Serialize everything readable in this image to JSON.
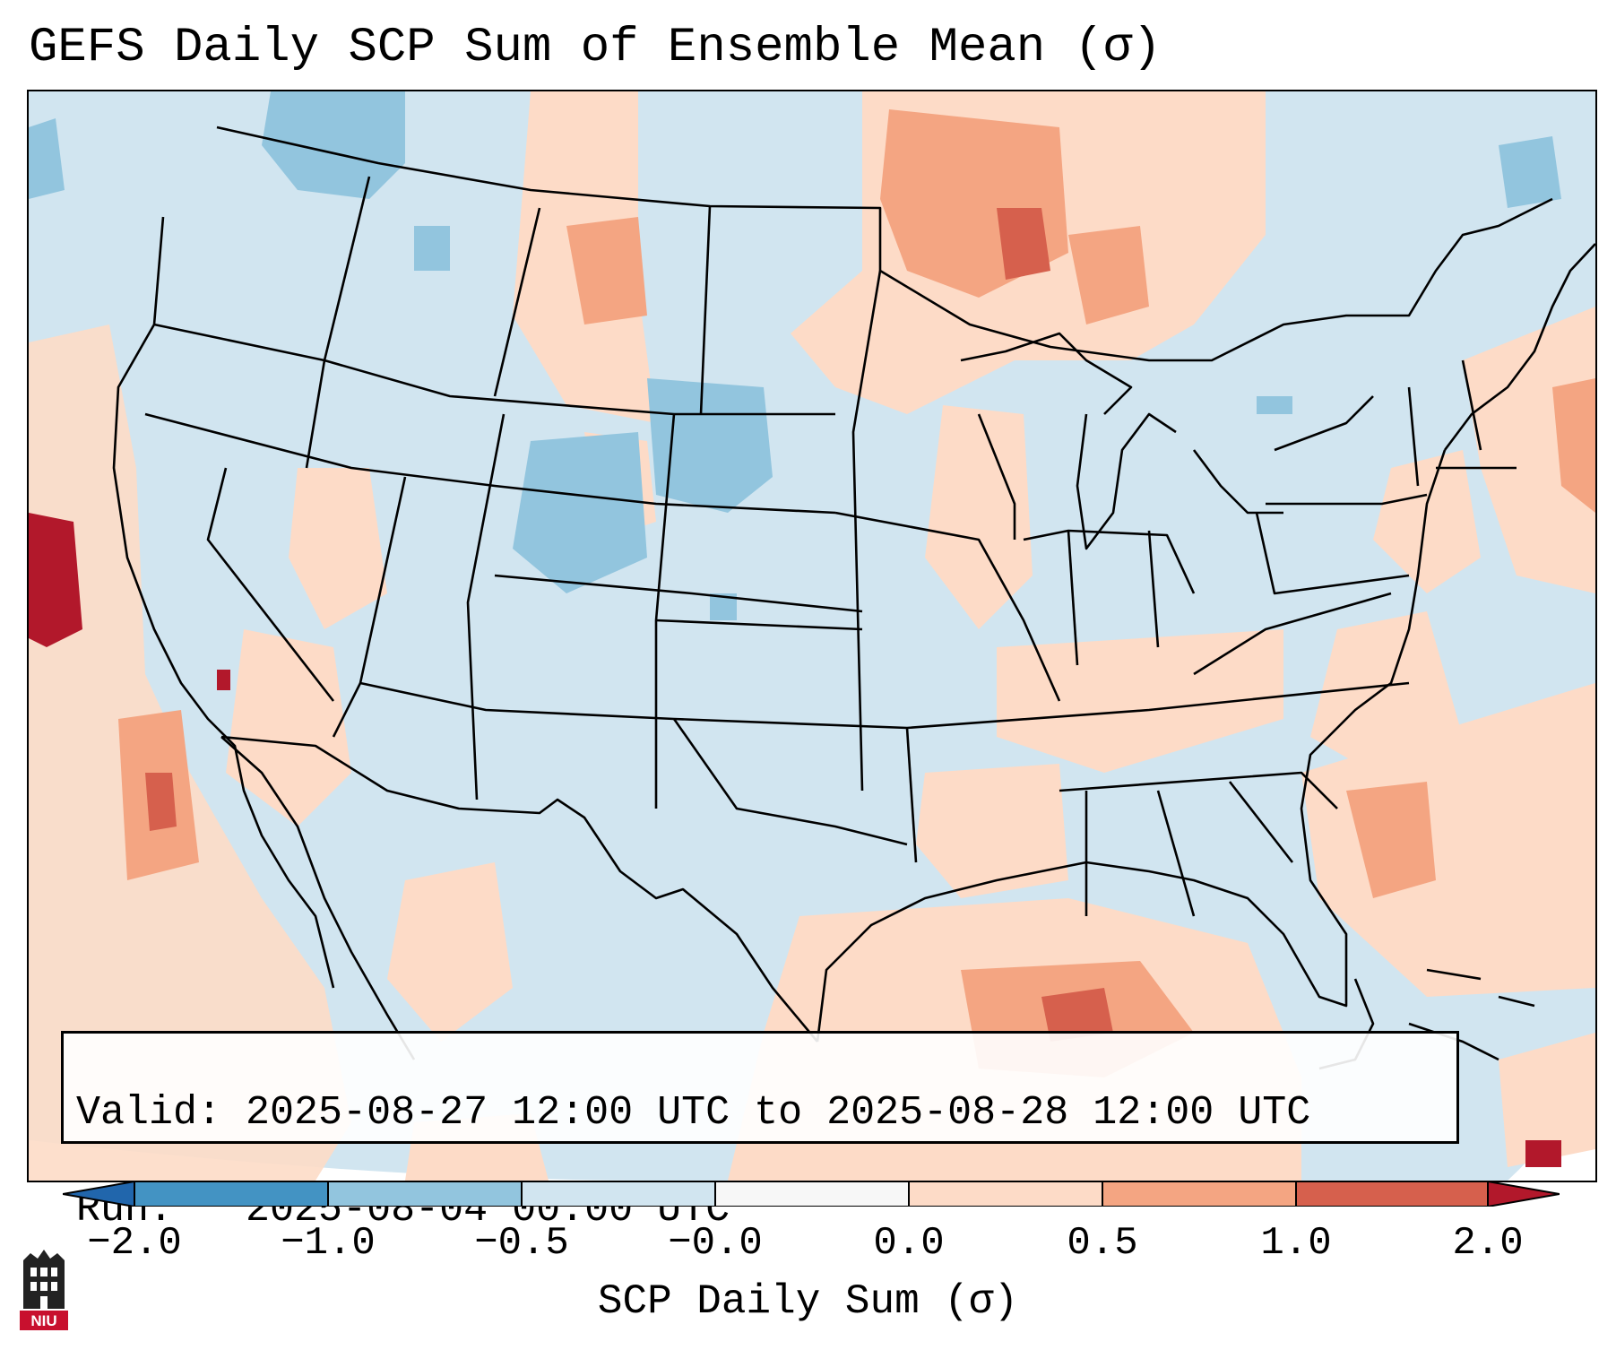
{
  "title": "GEFS Daily SCP Sum of Ensemble Mean (σ)",
  "info": {
    "valid_label": "Valid:",
    "valid_value": "2025-08-27 12:00 UTC to 2025-08-28 12:00 UTC",
    "run_label": "Run:",
    "run_value": "2025-08-04 00:00 UTC"
  },
  "colorbar": {
    "label": "SCP Daily Sum (σ)",
    "ticks": [
      "−2.0",
      "−1.0",
      "−0.5",
      "−0.0",
      "0.0",
      "0.5",
      "1.0",
      "2.0"
    ],
    "colors": [
      "#2166ac",
      "#4393c3",
      "#92c5de",
      "#d1e5f0",
      "#f7f7f7",
      "#fddbc7",
      "#f4a582",
      "#d6604d",
      "#b2182b"
    ]
  },
  "logo": {
    "text": "NIU",
    "color": "#c8102e"
  }
}
